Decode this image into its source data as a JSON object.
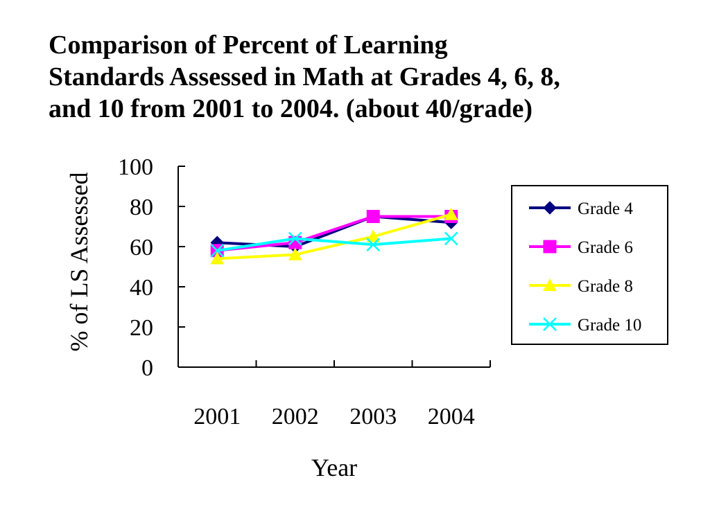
{
  "chart_data": {
    "type": "line",
    "title_lines": [
      "Comparison of Percent of Learning",
      "Standards Assessed in Math at Grades 4, 6, 8,",
      "and 10 from 2001 to 2004. (about 40/grade)"
    ],
    "xlabel": "Year",
    "ylabel": "% of LS Assessed",
    "categories": [
      "2001",
      "2002",
      "2003",
      "2004"
    ],
    "ylim": [
      0,
      100
    ],
    "yticks": [
      "0",
      "20",
      "40",
      "60",
      "80",
      "100"
    ],
    "grid": false,
    "legend_position": "right",
    "series": [
      {
        "name": "Grade 4",
        "values": [
          62,
          60,
          75,
          72
        ],
        "color": "#000080",
        "marker": "diamond"
      },
      {
        "name": "Grade 6",
        "values": [
          58,
          62,
          75,
          75
        ],
        "color": "#ff00ff",
        "marker": "square"
      },
      {
        "name": "Grade 8",
        "values": [
          54,
          56,
          65,
          76
        ],
        "color": "#ffff00",
        "marker": "triangle"
      },
      {
        "name": "Grade 10",
        "values": [
          58,
          64,
          61,
          64
        ],
        "color": "#00ffff",
        "marker": "x"
      }
    ]
  }
}
